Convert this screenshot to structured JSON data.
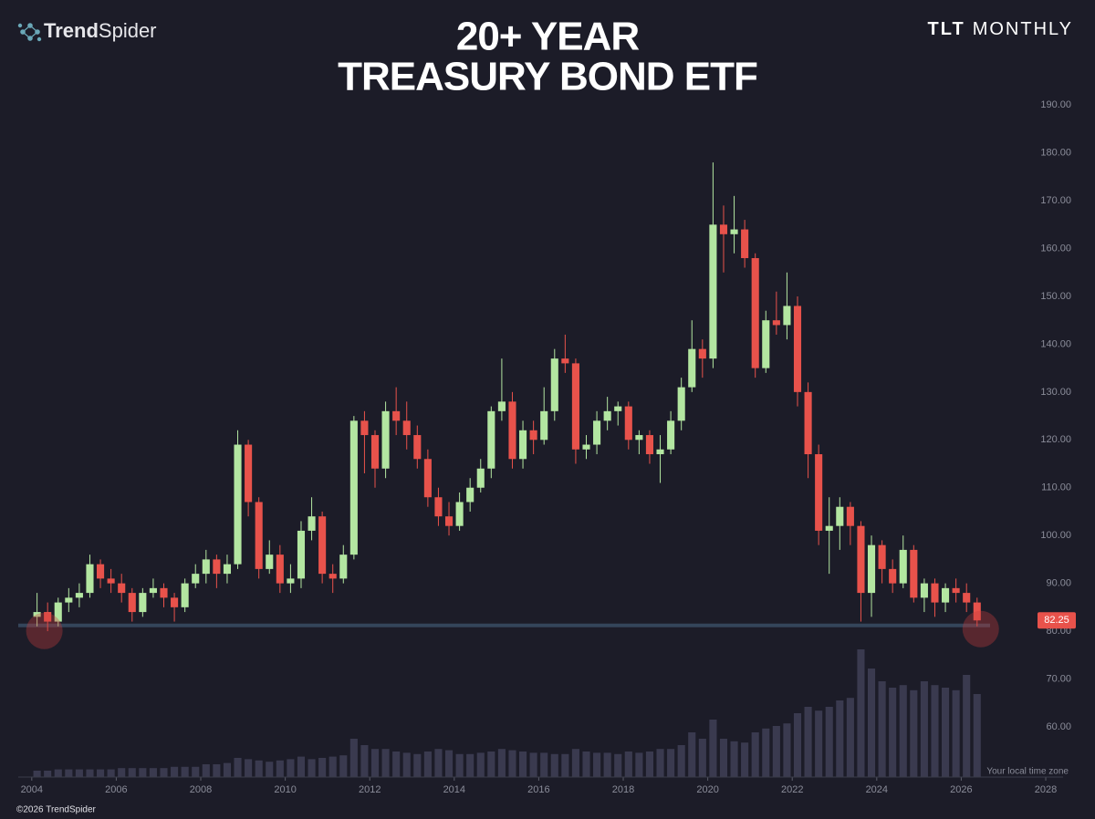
{
  "chart_data": {
    "type": "candlestick",
    "brand": [
      "Trend",
      "Spider"
    ],
    "symbol": "TLT",
    "interval": "MONTHLY",
    "title": [
      "20+ YEAR",
      "TREASURY BOND ETF"
    ],
    "timezone_note": "Your local time zone",
    "copyright": "©2026 TrendSpider",
    "up_color": "#b3e6a1",
    "down_color": "#e8524b",
    "volume_color": "#3a3a4f",
    "last_price": 82.25,
    "support_level": 81.2,
    "xlim": [
      2003.68,
      2028.41
    ],
    "xticks": [
      2004,
      2006,
      2008,
      2010,
      2012,
      2014,
      2016,
      2018,
      2020,
      2022,
      2024,
      2026,
      2028
    ],
    "ylim": [
      49.5,
      192.9
    ],
    "yticks": [
      {
        "value": 60,
        "label": "60.00"
      },
      {
        "value": 70,
        "label": "70.00"
      },
      {
        "value": 80,
        "label": "80.00"
      },
      {
        "value": 90,
        "label": "90.00"
      },
      {
        "value": 100,
        "label": "100.00"
      },
      {
        "value": 110,
        "label": "110.00"
      },
      {
        "value": 120,
        "label": "120.00"
      },
      {
        "value": 130,
        "label": "130.00"
      },
      {
        "value": 140,
        "label": "140.00"
      },
      {
        "value": 150,
        "label": "150.00"
      },
      {
        "value": 160,
        "label": "160.00"
      },
      {
        "value": 170,
        "label": "170.00"
      },
      {
        "value": 180,
        "label": "180.00"
      },
      {
        "value": 190,
        "label": "190.00"
      }
    ],
    "vlim": [
      0,
      100
    ],
    "x": [
      2004.125,
      2004.375,
      2004.625,
      2004.875,
      2005.125,
      2005.375,
      2005.625,
      2005.875,
      2006.125,
      2006.375,
      2006.625,
      2006.875,
      2007.125,
      2007.375,
      2007.625,
      2007.875,
      2008.125,
      2008.375,
      2008.625,
      2008.875,
      2009.125,
      2009.375,
      2009.625,
      2009.875,
      2010.125,
      2010.375,
      2010.625,
      2010.875,
      2011.125,
      2011.375,
      2011.625,
      2011.875,
      2012.125,
      2012.375,
      2012.625,
      2012.875,
      2013.125,
      2013.375,
      2013.625,
      2013.875,
      2014.125,
      2014.375,
      2014.625,
      2014.875,
      2015.125,
      2015.375,
      2015.625,
      2015.875,
      2016.125,
      2016.375,
      2016.625,
      2016.875,
      2017.125,
      2017.375,
      2017.625,
      2017.875,
      2018.125,
      2018.375,
      2018.625,
      2018.875,
      2019.125,
      2019.375,
      2019.625,
      2019.875,
      2020.125,
      2020.375,
      2020.625,
      2020.875,
      2021.125,
      2021.375,
      2021.625,
      2021.875,
      2022.125,
      2022.375,
      2022.625,
      2022.875,
      2023.125,
      2023.375,
      2023.625,
      2023.875,
      2024.125,
      2024.375,
      2024.625,
      2024.875,
      2025.125,
      2025.375,
      2025.625,
      2025.875,
      2026.125,
      2026.375
    ],
    "open": [
      83,
      84,
      82,
      86,
      87,
      88,
      94,
      91,
      90,
      88,
      84,
      88,
      89,
      87,
      85,
      90,
      92,
      95,
      92,
      94,
      119,
      107,
      93,
      96,
      90,
      91,
      101,
      104,
      92,
      91,
      96,
      124,
      121,
      114,
      126,
      124,
      121,
      116,
      108,
      104,
      102,
      107,
      110,
      114,
      126,
      128,
      116,
      122,
      120,
      126,
      137,
      136,
      118,
      119,
      124,
      126,
      127,
      120,
      121,
      117,
      118,
      124,
      131,
      139,
      137,
      165,
      163,
      164,
      158,
      135,
      145,
      144,
      148,
      130,
      117,
      101,
      102,
      106,
      102,
      88,
      98,
      93,
      90,
      97,
      87,
      90,
      86,
      89,
      88,
      86
    ],
    "high": [
      88,
      86,
      87,
      89,
      90,
      96,
      95,
      93,
      92,
      89,
      89,
      91,
      90,
      88,
      91,
      94,
      97,
      96,
      96,
      122,
      120,
      108,
      99,
      98,
      94,
      103,
      108,
      105,
      94,
      98,
      125,
      126,
      122,
      128,
      131,
      128,
      123,
      118,
      110,
      107,
      109,
      112,
      116,
      127,
      137,
      130,
      124,
      124,
      131,
      139,
      142,
      137,
      121,
      126,
      129,
      128,
      128,
      122,
      122,
      121,
      126,
      133,
      145,
      141,
      178,
      169,
      171,
      166,
      159,
      147,
      151,
      155,
      150,
      132,
      119,
      108,
      108,
      107,
      103,
      100,
      99,
      95,
      100,
      98,
      91,
      91,
      90,
      91,
      90,
      87
    ],
    "low": [
      81,
      80,
      81,
      84,
      85,
      87,
      89,
      88,
      86,
      82,
      83,
      87,
      85,
      82,
      84,
      89,
      90,
      89,
      90,
      93,
      104,
      91,
      92,
      88,
      88,
      89,
      99,
      90,
      88,
      90,
      95,
      113,
      110,
      112,
      121,
      118,
      114,
      106,
      102,
      100,
      101,
      105,
      109,
      112,
      124,
      114,
      114,
      117,
      119,
      124,
      134,
      115,
      116,
      117,
      122,
      123,
      118,
      117,
      115,
      111,
      117,
      122,
      130,
      133,
      135,
      155,
      159,
      156,
      133,
      134,
      142,
      141,
      127,
      112,
      98,
      92,
      97,
      98,
      82,
      83,
      90,
      88,
      89,
      86,
      84,
      83,
      84,
      86,
      84,
      81
    ],
    "close": [
      84,
      82,
      86,
      87,
      88,
      94,
      91,
      90,
      88,
      84,
      88,
      89,
      87,
      85,
      90,
      92,
      95,
      92,
      94,
      119,
      107,
      93,
      96,
      90,
      91,
      101,
      104,
      92,
      91,
      96,
      124,
      121,
      114,
      126,
      124,
      121,
      116,
      108,
      104,
      102,
      107,
      110,
      114,
      126,
      128,
      116,
      122,
      120,
      126,
      137,
      136,
      118,
      119,
      124,
      126,
      127,
      120,
      121,
      117,
      118,
      124,
      131,
      139,
      137,
      165,
      163,
      164,
      158,
      135,
      145,
      144,
      148,
      130,
      117,
      101,
      102,
      106,
      102,
      88,
      98,
      93,
      90,
      97,
      87,
      90,
      86,
      89,
      88,
      86,
      82.25
    ],
    "volume": [
      5,
      5,
      6,
      6,
      6,
      6,
      6,
      6,
      7,
      7,
      7,
      7,
      7,
      8,
      8,
      8,
      10,
      10,
      11,
      15,
      14,
      13,
      12,
      13,
      14,
      16,
      14,
      15,
      16,
      17,
      30,
      25,
      22,
      22,
      20,
      19,
      18,
      20,
      22,
      21,
      18,
      18,
      19,
      20,
      22,
      21,
      20,
      19,
      19,
      18,
      18,
      22,
      20,
      19,
      19,
      18,
      20,
      19,
      20,
      22,
      22,
      25,
      35,
      30,
      45,
      30,
      28,
      27,
      35,
      38,
      40,
      42,
      50,
      55,
      52,
      55,
      60,
      62,
      100,
      85,
      75,
      70,
      72,
      68,
      75,
      72,
      70,
      68,
      80,
      65
    ]
  }
}
